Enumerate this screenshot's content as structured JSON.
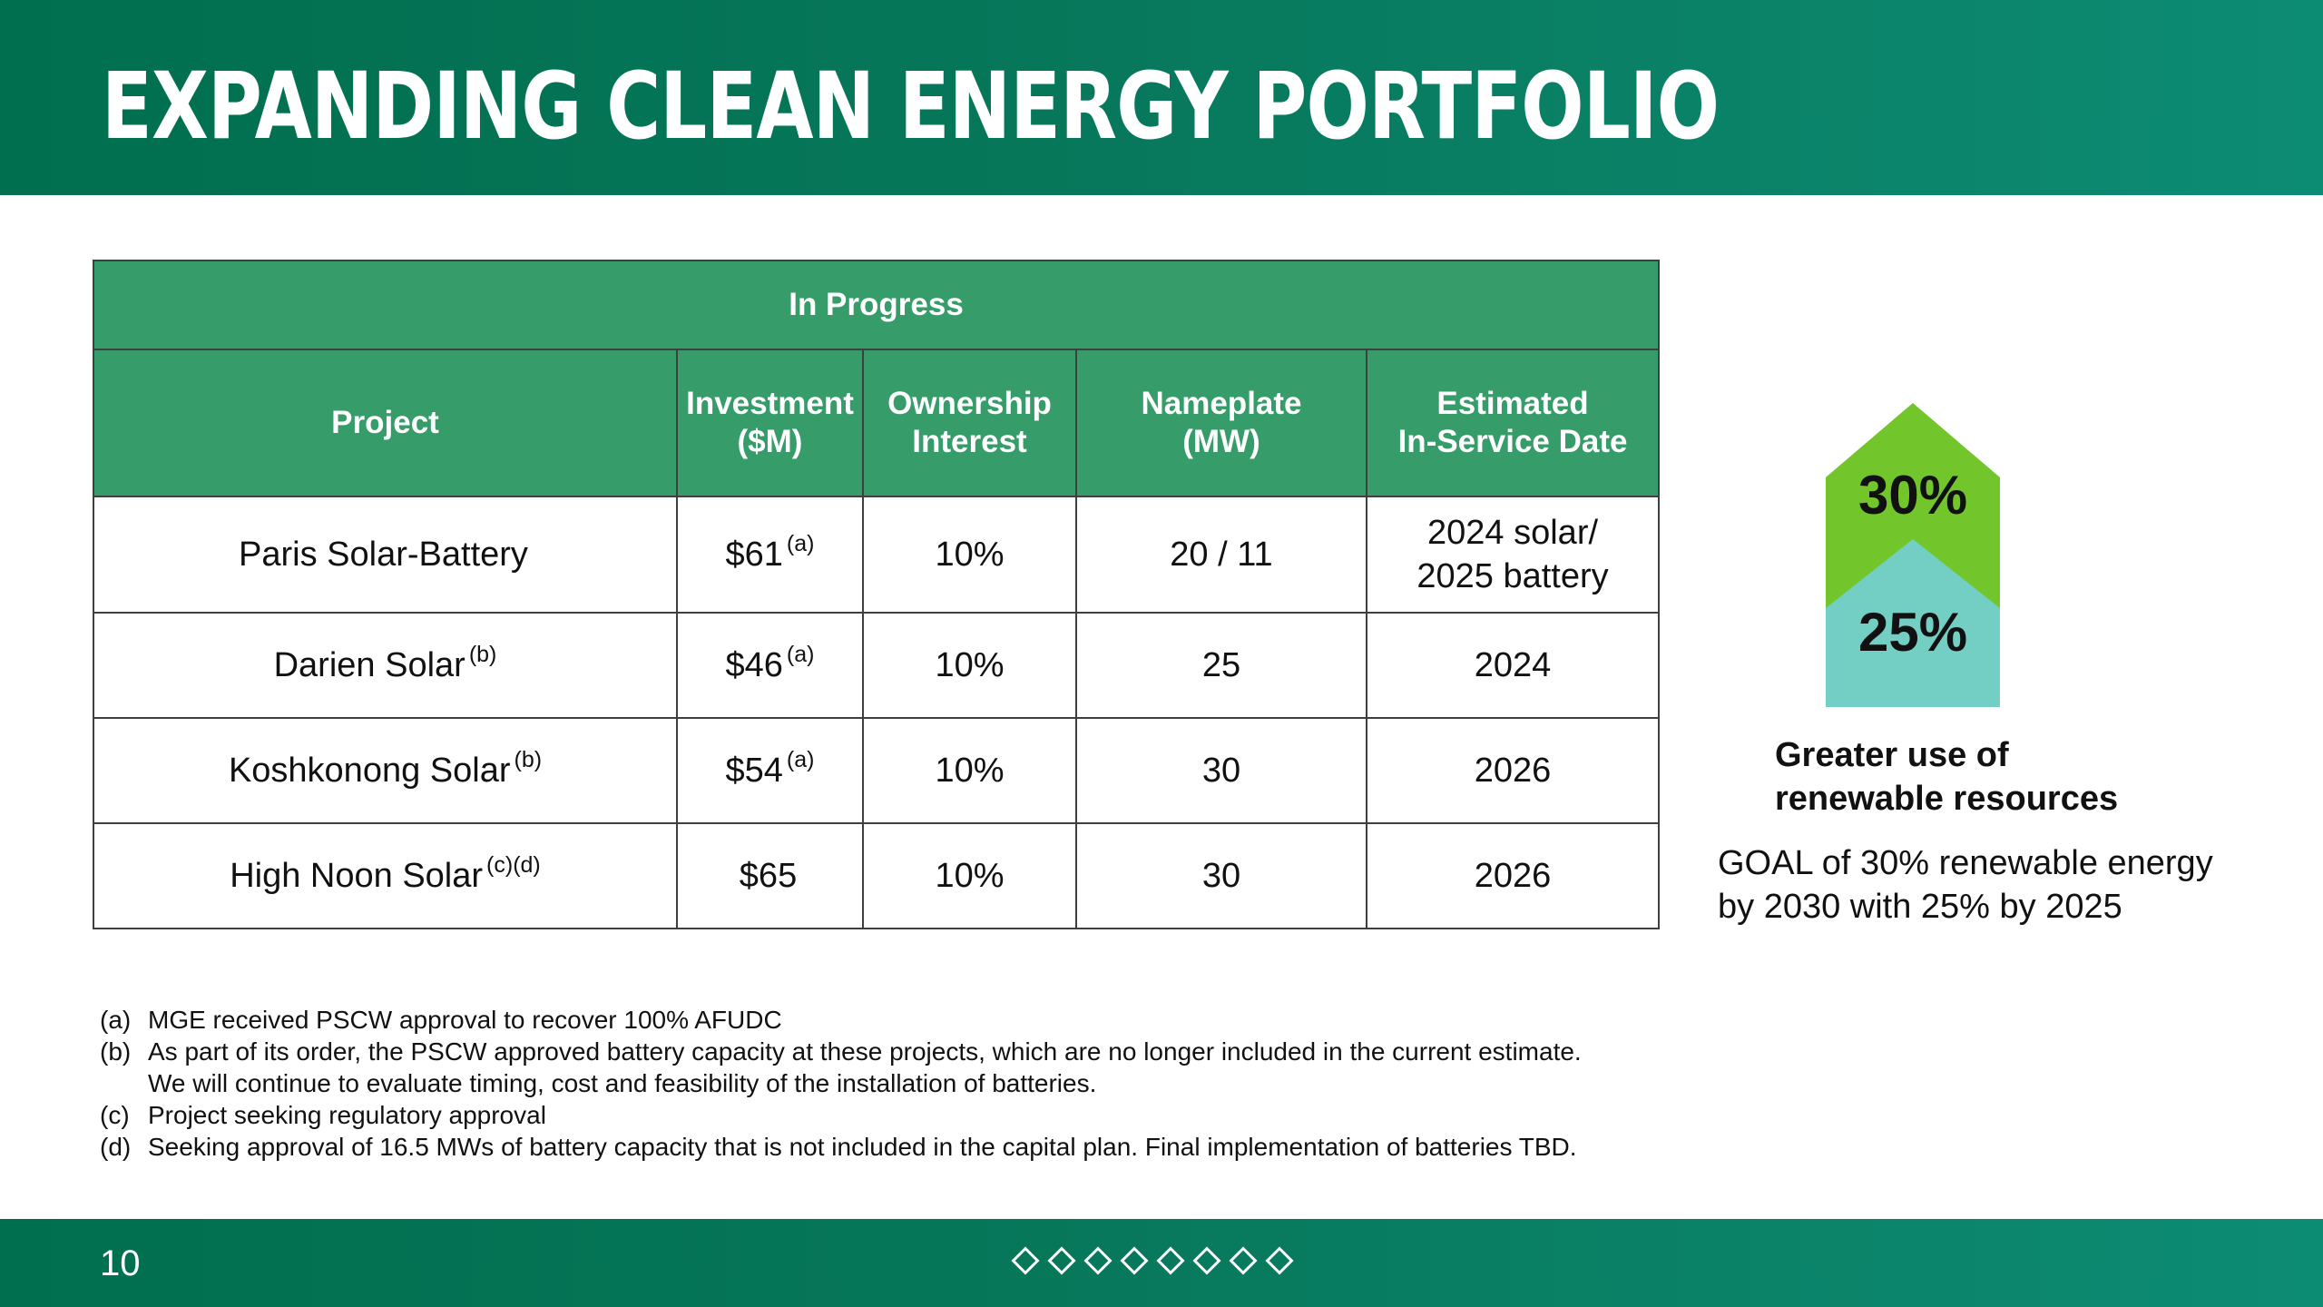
{
  "slide": {
    "title": "EXPANDING CLEAN ENERGY PORTFOLIO",
    "page_number": "10"
  },
  "table": {
    "band_label": "In Progress",
    "headers": {
      "project": "Project",
      "investment_line1": "Investment",
      "investment_line2": "($M)",
      "ownership_line1": "Ownership",
      "ownership_line2": "Interest",
      "nameplate_line1": "Nameplate",
      "nameplate_line2": "(MW)",
      "date_line1": "Estimated",
      "date_line2": "In-Service Date"
    },
    "rows": [
      {
        "project": "Paris Solar-Battery",
        "project_note": "",
        "investment": "$61",
        "investment_note": "(a)",
        "ownership": "10%",
        "nameplate": "20 / 11",
        "date_line1": "2024 solar/",
        "date_line2": "2025 battery"
      },
      {
        "project": "Darien Solar",
        "project_note": "(b)",
        "investment": "$46",
        "investment_note": "(a)",
        "ownership": "10%",
        "nameplate": "25",
        "date_line1": "2024",
        "date_line2": ""
      },
      {
        "project": "Koshkonong Solar",
        "project_note": "(b)",
        "investment": "$54",
        "investment_note": "(a)",
        "ownership": "10%",
        "nameplate": "30",
        "date_line1": "2026",
        "date_line2": ""
      },
      {
        "project": "High Noon Solar",
        "project_note": "(c)(d)",
        "investment": "$65",
        "investment_note": "",
        "ownership": "10%",
        "nameplate": "30",
        "date_line1": "2026",
        "date_line2": ""
      }
    ]
  },
  "footnotes": [
    {
      "marker": "(a)",
      "text": "MGE received PSCW approval to recover 100% AFUDC",
      "text2": ""
    },
    {
      "marker": "(b)",
      "text": "As part of its order, the PSCW approved battery capacity at these projects, which are no longer included in the current estimate.",
      "text2": "We will continue to evaluate timing, cost and feasibility of the installation of batteries."
    },
    {
      "marker": "(c)",
      "text": "Project seeking regulatory approval",
      "text2": ""
    },
    {
      "marker": "(d)",
      "text": "Seeking approval of 16.5 MWs of battery capacity that is not included in the capital plan. Final implementation of batteries TBD.",
      "text2": ""
    }
  ],
  "goal_graphic": {
    "upper_label": "30%",
    "lower_label": "25%",
    "upper_color": "#72c52a",
    "lower_color": "#73cfc4",
    "heading_line1": "Greater use of",
    "heading_line2": "renewable resources",
    "goal_line1": "GOAL of 30% renewable energy",
    "goal_line2": "by 2030 with 25% by 2025"
  },
  "colors": {
    "header_green": "#006f4f",
    "table_header_green": "#369c69",
    "text": "#111111"
  }
}
